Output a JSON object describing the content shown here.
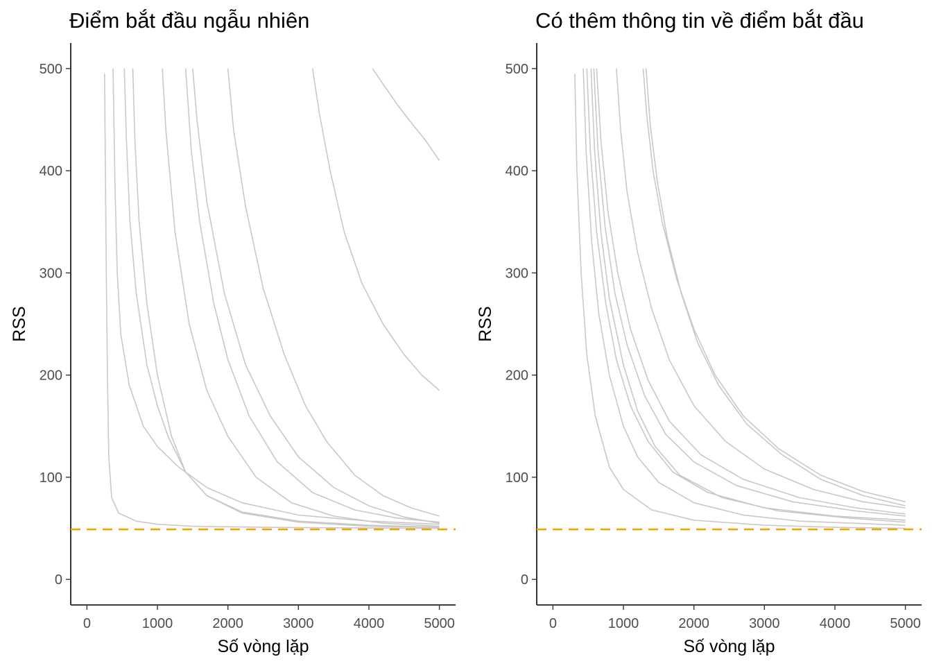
{
  "chart_data": [
    {
      "type": "line",
      "title": "Điểm bắt đầu ngẫu nhiên",
      "xlabel": "Số vòng lặp",
      "ylabel": "RSS",
      "xlim": [
        -230,
        5230
      ],
      "ylim": [
        -25,
        525
      ],
      "xticks": [
        0,
        1000,
        2000,
        3000,
        4000,
        5000
      ],
      "yticks": [
        0,
        100,
        200,
        300,
        400,
        500
      ],
      "grid": false,
      "line_color": "#c8c8c8",
      "reference_line": {
        "y": 49,
        "color": "#f0a500",
        "style": "dashed"
      },
      "series": [
        {
          "values": [
            [
              250,
              495
            ],
            [
              262,
              400
            ],
            [
              275,
              300
            ],
            [
              290,
              200
            ],
            [
              310,
              120
            ],
            [
              350,
              80
            ],
            [
              450,
              65
            ],
            [
              700,
              57
            ],
            [
              1000,
              54
            ],
            [
              1500,
              52
            ],
            [
              2500,
              51
            ],
            [
              3500,
              50.5
            ],
            [
              5000,
              50
            ]
          ]
        },
        {
          "values": [
            [
              370,
              500
            ],
            [
              400,
              380
            ],
            [
              430,
              300
            ],
            [
              480,
              240
            ],
            [
              600,
              190
            ],
            [
              800,
              150
            ],
            [
              1000,
              130
            ],
            [
              1300,
              110
            ],
            [
              1700,
              90
            ],
            [
              2200,
              75
            ],
            [
              3000,
              63
            ],
            [
              4000,
              57
            ],
            [
              5000,
              54
            ]
          ]
        },
        {
          "values": [
            [
              530,
              500
            ],
            [
              560,
              430
            ],
            [
              610,
              350
            ],
            [
              700,
              280
            ],
            [
              850,
              210
            ],
            [
              1000,
              170
            ],
            [
              1150,
              140
            ],
            [
              1400,
              105
            ],
            [
              1700,
              82
            ],
            [
              2200,
              66
            ],
            [
              3000,
              57
            ],
            [
              4000,
              53
            ],
            [
              5000,
              51
            ]
          ]
        },
        {
          "values": [
            [
              650,
              500
            ],
            [
              680,
              430
            ],
            [
              740,
              350
            ],
            [
              850,
              270
            ],
            [
              1000,
              200
            ],
            [
              1200,
              140
            ],
            [
              1400,
              105
            ],
            [
              1700,
              82
            ],
            [
              2200,
              65
            ],
            [
              3000,
              56
            ],
            [
              4000,
              52
            ],
            [
              5000,
              51
            ]
          ]
        },
        {
          "values": [
            [
              1070,
              500
            ],
            [
              1120,
              440
            ],
            [
              1250,
              340
            ],
            [
              1450,
              250
            ],
            [
              1700,
              185
            ],
            [
              2000,
              140
            ],
            [
              2400,
              100
            ],
            [
              2900,
              75
            ],
            [
              3500,
              62
            ],
            [
              4200,
              55
            ],
            [
              5000,
              52
            ]
          ]
        },
        {
          "values": [
            [
              1400,
              500
            ],
            [
              1480,
              420
            ],
            [
              1600,
              350
            ],
            [
              1800,
              270
            ],
            [
              2000,
              215
            ],
            [
              2300,
              160
            ],
            [
              2700,
              115
            ],
            [
              3200,
              85
            ],
            [
              3800,
              68
            ],
            [
              4400,
              60
            ],
            [
              5000,
              56
            ]
          ]
        },
        {
          "values": [
            [
              1500,
              500
            ],
            [
              1560,
              450
            ],
            [
              1700,
              370
            ],
            [
              1950,
              280
            ],
            [
              2250,
              210
            ],
            [
              2600,
              160
            ],
            [
              3000,
              120
            ],
            [
              3500,
              90
            ],
            [
              4000,
              72
            ],
            [
              4500,
              61
            ],
            [
              5000,
              55
            ]
          ]
        },
        {
          "values": [
            [
              2000,
              500
            ],
            [
              2080,
              440
            ],
            [
              2250,
              365
            ],
            [
              2500,
              285
            ],
            [
              2800,
              220
            ],
            [
              3100,
              170
            ],
            [
              3400,
              135
            ],
            [
              3800,
              102
            ],
            [
              4200,
              82
            ],
            [
              4600,
              70
            ],
            [
              5000,
              62
            ]
          ]
        },
        {
          "values": [
            [
              3200,
              500
            ],
            [
              3300,
              455
            ],
            [
              3450,
              400
            ],
            [
              3650,
              340
            ],
            [
              3900,
              290
            ],
            [
              4200,
              250
            ],
            [
              4500,
              220
            ],
            [
              4750,
              200
            ],
            [
              5000,
              185
            ]
          ]
        },
        {
          "values": [
            [
              4050,
              500
            ],
            [
              4200,
              485
            ],
            [
              4400,
              465
            ],
            [
              4600,
              447
            ],
            [
              4800,
              430
            ],
            [
              5000,
              410
            ]
          ]
        }
      ]
    },
    {
      "type": "line",
      "title": "Có thêm thông tin về điểm bắt đầu",
      "xlabel": "Số vòng lặp",
      "ylabel": "RSS",
      "xlim": [
        -230,
        5230
      ],
      "ylim": [
        -25,
        525
      ],
      "xticks": [
        0,
        1000,
        2000,
        3000,
        4000,
        5000
      ],
      "yticks": [
        0,
        100,
        200,
        300,
        400,
        500
      ],
      "grid": false,
      "line_color": "#c8c8c8",
      "reference_line": {
        "y": 49,
        "color": "#f0a500",
        "style": "dashed"
      },
      "series": [
        {
          "values": [
            [
              310,
              495
            ],
            [
              340,
              400
            ],
            [
              400,
              300
            ],
            [
              480,
              220
            ],
            [
              600,
              160
            ],
            [
              800,
              110
            ],
            [
              1000,
              88
            ],
            [
              1400,
              68
            ],
            [
              2000,
              58
            ],
            [
              3000,
              53
            ],
            [
              4000,
              51
            ],
            [
              5000,
              50
            ]
          ]
        },
        {
          "values": [
            [
              430,
              500
            ],
            [
              470,
              420
            ],
            [
              550,
              330
            ],
            [
              650,
              260
            ],
            [
              800,
              200
            ],
            [
              1000,
              150
            ],
            [
              1200,
              120
            ],
            [
              1500,
              95
            ],
            [
              2000,
              75
            ],
            [
              2700,
              63
            ],
            [
              3500,
              57
            ],
            [
              5000,
              53
            ]
          ]
        },
        {
          "values": [
            [
              480,
              500
            ],
            [
              530,
              420
            ],
            [
              620,
              340
            ],
            [
              750,
              270
            ],
            [
              900,
              215
            ],
            [
              1100,
              170
            ],
            [
              1350,
              135
            ],
            [
              1700,
              105
            ],
            [
              2200,
              85
            ],
            [
              3000,
              70
            ],
            [
              4000,
              62
            ],
            [
              5000,
              58
            ]
          ]
        },
        {
          "values": [
            [
              540,
              500
            ],
            [
              590,
              420
            ],
            [
              680,
              340
            ],
            [
              800,
              275
            ],
            [
              1000,
              210
            ],
            [
              1200,
              165
            ],
            [
              1450,
              130
            ],
            [
              1800,
              102
            ],
            [
              2400,
              80
            ],
            [
              3200,
              67
            ],
            [
              4200,
              60
            ],
            [
              5000,
              56
            ]
          ]
        },
        {
          "values": [
            [
              580,
              500
            ],
            [
              640,
              420
            ],
            [
              740,
              345
            ],
            [
              880,
              280
            ],
            [
              1050,
              230
            ],
            [
              1300,
              180
            ],
            [
              1600,
              142
            ],
            [
              2000,
              115
            ],
            [
              2600,
              92
            ],
            [
              3400,
              76
            ],
            [
              4300,
              67
            ],
            [
              5000,
              62
            ]
          ]
        },
        {
          "values": [
            [
              620,
              500
            ],
            [
              680,
              430
            ],
            [
              780,
              360
            ],
            [
              920,
              300
            ],
            [
              1100,
              245
            ],
            [
              1350,
              195
            ],
            [
              1650,
              155
            ],
            [
              2100,
              122
            ],
            [
              2700,
              98
            ],
            [
              3500,
              80
            ],
            [
              4300,
              70
            ],
            [
              5000,
              64
            ]
          ]
        },
        {
          "values": [
            [
              900,
              500
            ],
            [
              960,
              440
            ],
            [
              1050,
              380
            ],
            [
              1200,
              320
            ],
            [
              1400,
              265
            ],
            [
              1650,
              215
            ],
            [
              2000,
              170
            ],
            [
              2450,
              135
            ],
            [
              3000,
              108
            ],
            [
              3700,
              88
            ],
            [
              4400,
              76
            ],
            [
              5000,
              70
            ]
          ]
        },
        {
          "values": [
            [
              1280,
              500
            ],
            [
              1330,
              455
            ],
            [
              1420,
              400
            ],
            [
              1550,
              350
            ],
            [
              1750,
              295
            ],
            [
              2000,
              245
            ],
            [
              2300,
              200
            ],
            [
              2700,
              160
            ],
            [
              3200,
              128
            ],
            [
              3800,
              102
            ],
            [
              4400,
              86
            ],
            [
              5000,
              76
            ]
          ]
        },
        {
          "values": [
            [
              1320,
              500
            ],
            [
              1380,
              445
            ],
            [
              1480,
              390
            ],
            [
              1620,
              335
            ],
            [
              1820,
              280
            ],
            [
              2050,
              232
            ],
            [
              2350,
              190
            ],
            [
              2750,
              152
            ],
            [
              3250,
              122
            ],
            [
              3800,
              98
            ],
            [
              4400,
              82
            ],
            [
              5000,
              72
            ]
          ]
        }
      ]
    }
  ]
}
